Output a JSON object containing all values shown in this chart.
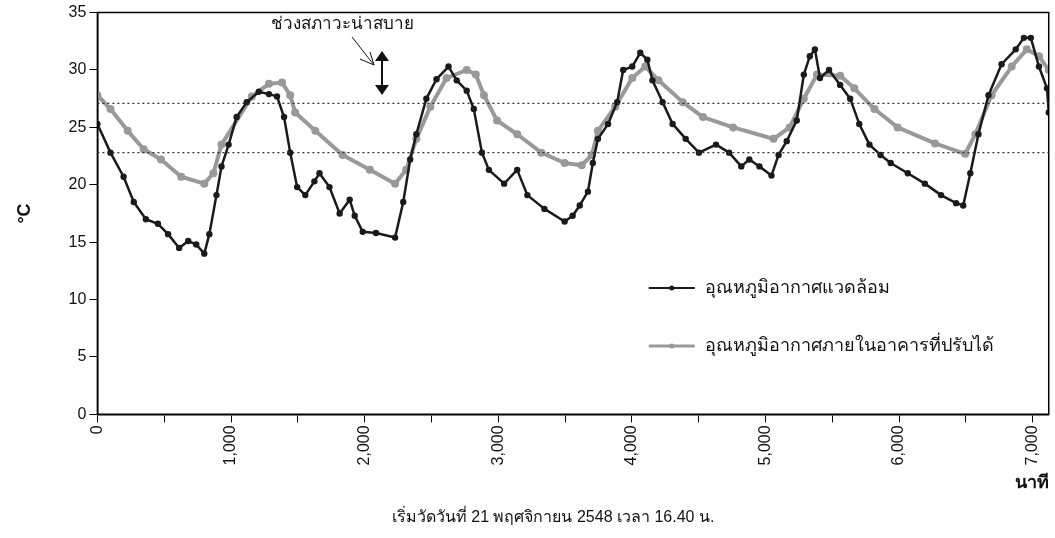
{
  "chart_data": {
    "type": "line",
    "xlabel": "นาที",
    "ylabel": "°C",
    "xlim": [
      0,
      7120
    ],
    "ylim": [
      0,
      35
    ],
    "xticks": [
      {
        "value": 0,
        "label": "0"
      },
      {
        "value": 500,
        "label": null
      },
      {
        "value": 1000,
        "label": "1,000"
      },
      {
        "value": 1500,
        "label": null
      },
      {
        "value": 2000,
        "label": "2,000"
      },
      {
        "value": 2500,
        "label": null
      },
      {
        "value": 3000,
        "label": "3,000"
      },
      {
        "value": 3500,
        "label": null
      },
      {
        "value": 4000,
        "label": "4,000"
      },
      {
        "value": 4500,
        "label": null
      },
      {
        "value": 5000,
        "label": "5,000"
      },
      {
        "value": 5500,
        "label": null
      },
      {
        "value": 6000,
        "label": "6,000"
      },
      {
        "value": 6500,
        "label": null
      },
      {
        "value": 7000,
        "label": "7,000"
      }
    ],
    "yticks": [
      0,
      5,
      10,
      15,
      20,
      25,
      30,
      35
    ],
    "grid": false,
    "legend": "right",
    "marker": "circle",
    "line_style": "solid",
    "ref_lines": [
      {
        "axis": "y",
        "value": 27.1,
        "color": "#333333",
        "line_style": "dotted"
      },
      {
        "axis": "y",
        "value": 22.8,
        "color": "#333333",
        "line_style": "dotted"
      }
    ],
    "annotations": [
      "ช่วงสภาวะน่าสบาย",
      "เริ่มวัดวันที่ 21 พฤศจิกายน 2548 เวลา 16.40 น."
    ],
    "series": [
      {
        "name": "อุณหภูมิอากาศแวดล้อม",
        "color": "#1a1a1a",
        "x": [
          0,
          98,
          196,
          272,
          363,
          453,
          529,
          612,
          680,
          740,
          800,
          838,
          891,
          929,
          982,
          1042,
          1118,
          1208,
          1284,
          1344,
          1397,
          1443,
          1495,
          1556,
          1624,
          1662,
          1737,
          1813,
          1888,
          1926,
          1986,
          2085,
          2228,
          2289,
          2341,
          2387,
          2462,
          2538,
          2628,
          2689,
          2764,
          2817,
          2878,
          2930,
          3044,
          3142,
          3218,
          3346,
          3497,
          3557,
          3610,
          3671,
          3708,
          3746,
          3822,
          3890,
          3935,
          4003,
          4063,
          4116,
          4154,
          4230,
          4305,
          4403,
          4502,
          4630,
          4728,
          4819,
          4879,
          4955,
          5045,
          5098,
          5159,
          5234,
          5287,
          5332,
          5370,
          5408,
          5476,
          5559,
          5634,
          5702,
          5778,
          5861,
          5937,
          6065,
          6193,
          6314,
          6427,
          6480,
          6533,
          6594,
          6669,
          6767,
          6873,
          6934,
          6986,
          7047,
          7107,
          7120
        ],
        "values": [
          25.3,
          22.8,
          20.7,
          18.5,
          17.0,
          16.6,
          15.7,
          14.5,
          15.1,
          14.8,
          14.0,
          15.7,
          19.1,
          21.6,
          23.5,
          25.9,
          27.2,
          28.1,
          27.9,
          27.7,
          25.9,
          22.8,
          19.8,
          19.1,
          20.3,
          21.0,
          19.8,
          17.5,
          18.7,
          17.3,
          15.9,
          15.8,
          15.4,
          18.5,
          22.2,
          24.4,
          27.5,
          29.2,
          30.3,
          29.1,
          28.2,
          26.6,
          22.8,
          21.3,
          20.1,
          21.3,
          19.1,
          17.9,
          16.8,
          17.3,
          18.2,
          19.4,
          21.9,
          24.0,
          25.3,
          27.2,
          30.0,
          30.3,
          31.5,
          30.9,
          29.1,
          27.2,
          25.3,
          24.0,
          22.8,
          23.5,
          22.8,
          21.6,
          22.2,
          21.6,
          20.8,
          22.6,
          23.8,
          25.6,
          29.6,
          31.2,
          31.8,
          29.3,
          30.0,
          28.7,
          27.5,
          25.3,
          23.5,
          22.6,
          21.9,
          21.0,
          20.1,
          19.1,
          18.4,
          18.2,
          21.0,
          24.4,
          27.8,
          30.5,
          31.8,
          32.8,
          32.8,
          30.3,
          28.4,
          26.3
        ]
      },
      {
        "name": "อุณหภูมิอากาศภายในอาคารที่ปรับได้",
        "color": "#999999",
        "x": [
          0,
          98,
          227,
          347,
          476,
          627,
          800,
          868,
          929,
          1156,
          1284,
          1382,
          1443,
          1480,
          1631,
          1835,
          2039,
          2228,
          2311,
          2387,
          2492,
          2613,
          2764,
          2832,
          2893,
          2991,
          3142,
          3323,
          3497,
          3625,
          3701,
          3746,
          3875,
          4003,
          4101,
          4199,
          4381,
          4532,
          4758,
          5060,
          5181,
          5287,
          5385,
          5559,
          5665,
          5816,
          5989,
          6269,
          6495,
          6571,
          6692,
          6843,
          6956,
          7047,
          7120
        ],
        "values": [
          27.8,
          26.6,
          24.7,
          23.1,
          22.2,
          20.7,
          20.1,
          21.0,
          23.5,
          27.7,
          28.8,
          28.9,
          27.8,
          26.3,
          24.7,
          22.6,
          21.3,
          20.1,
          21.3,
          24.0,
          26.8,
          29.3,
          30.0,
          29.6,
          27.8,
          25.6,
          24.4,
          22.8,
          21.9,
          21.7,
          22.6,
          24.7,
          26.8,
          29.3,
          30.3,
          29.1,
          27.2,
          25.9,
          25.0,
          24.0,
          25.0,
          27.5,
          29.6,
          29.5,
          28.4,
          26.6,
          25.0,
          23.6,
          22.7,
          24.4,
          27.8,
          30.3,
          31.8,
          31.2,
          30.0
        ]
      }
    ]
  }
}
